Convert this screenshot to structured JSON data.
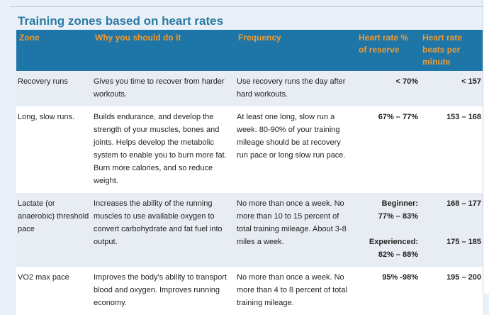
{
  "title": "Training zones based on heart rates",
  "headers": {
    "zone": "Zone",
    "why": "Why you should do it",
    "frequency": "Frequency",
    "reserve": "Heart rate % of reserve",
    "bpm": "Heart rate beats per minute"
  },
  "rows": [
    {
      "zone": "Recovery runs",
      "why": "Gives you time to recover from harder workouts.",
      "frequency": "Use recovery runs the day after hard workouts.",
      "reserve": "< 70%",
      "bpm": "< 157"
    },
    {
      "zone": "Long, slow runs.",
      "why": "Builds endurance, and develop the strength of your muscles, bones and joints. Helps develop the metabolic system to enable you to burn more fat. Burn more calories, and so reduce weight.",
      "frequency": "At least one long, slow run a week. 80-90% of your training mileage should be at recovery run pace or long slow run pace.",
      "reserve": "67% – 77%",
      "bpm": "153 – 168"
    },
    {
      "zone": "Lactate (or anaerobic) threshold pace",
      "why": "Increases the ability of the running muscles to use available oxygen to convert carbohydrate and fat fuel into output.",
      "frequency": "No more than once a week. No more than 10 to 15 percent of total training mileage. About 3-8 miles a week.",
      "reserve_beginner_label": "Beginner:",
      "reserve_beginner": "77% – 83%",
      "reserve_experienced_label": "Experienced:",
      "reserve_experienced": "82% – 88%",
      "bpm_beginner": "168 – 177",
      "bpm_experienced": "175 – 185"
    },
    {
      "zone": "VO2 max pace",
      "why": "Improves the body's ability to transport blood and oxygen. Improves running economy.",
      "frequency": "No more than once a week. No more than 4 to 8 percent of total training mileage.",
      "reserve": "95% -98%",
      "bpm": "195 – 200"
    }
  ]
}
